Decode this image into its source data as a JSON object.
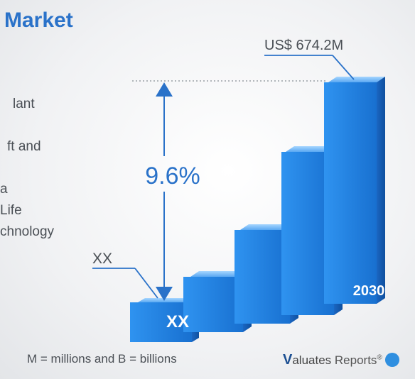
{
  "title": "Market",
  "side_text": [
    "lant",
    "ft and",
    "a",
    "Life",
    "chnology"
  ],
  "footnote": "M = millions and B = billions",
  "brand": {
    "v": "V",
    "name": "aluates",
    "suffix": "Reports",
    "mark": "®",
    "logo_icon": "globe-icon"
  },
  "colors": {
    "bar_front": "#1f7fe0",
    "bar_top": "#7ec0ff",
    "bar_side": "#1560b8",
    "accent": "#2a72c9"
  },
  "chart_data": {
    "type": "bar",
    "categories": [
      "XX",
      "",
      "",
      "",
      "2030"
    ],
    "values": [
      null,
      null,
      null,
      null,
      674.2
    ],
    "data_labels": [
      "XX",
      "",
      "",
      "",
      "US$ 674.2M"
    ],
    "bar_labels": [
      "XX",
      "",
      "",
      "",
      "2030"
    ],
    "growth_label": "9.6%",
    "grid": false
  }
}
